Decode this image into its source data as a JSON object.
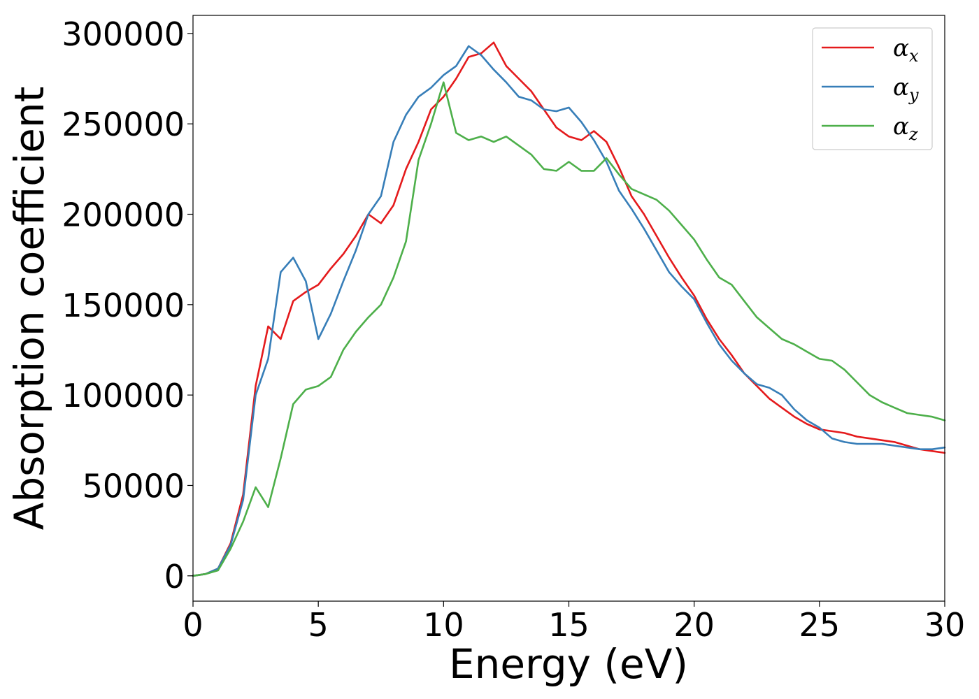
{
  "chart_data": {
    "type": "line",
    "title": "",
    "xlabel": "Energy (eV)",
    "ylabel": "Absorption coefficient",
    "xlim": [
      0,
      30
    ],
    "ylim": [
      -14000,
      310000
    ],
    "xticks": [
      0,
      5,
      10,
      15,
      20,
      25,
      30
    ],
    "xtick_labels": [
      "0",
      "5",
      "10",
      "15",
      "20",
      "25",
      "30"
    ],
    "yticks": [
      0,
      50000,
      100000,
      150000,
      200000,
      250000,
      300000
    ],
    "ytick_labels": [
      "0",
      "50000",
      "100000",
      "150000",
      "200000",
      "250000",
      "300000"
    ],
    "legend_position": "top-right",
    "grid": false,
    "x": [
      0,
      0.5,
      1,
      1.5,
      2,
      2.5,
      3,
      3.5,
      4,
      4.5,
      5,
      5.5,
      6,
      6.5,
      7,
      7.5,
      8,
      8.5,
      9,
      9.5,
      10,
      10.5,
      11,
      11.5,
      12,
      12.5,
      13,
      13.5,
      14,
      14.5,
      15,
      15.5,
      16,
      16.5,
      17,
      17.5,
      18,
      18.5,
      19,
      19.5,
      20,
      20.5,
      21,
      21.5,
      22,
      22.5,
      23,
      23.5,
      24,
      24.5,
      25,
      25.5,
      26,
      26.5,
      27,
      27.5,
      28,
      28.5,
      29,
      29.5,
      30
    ],
    "series": [
      {
        "name": "x",
        "label": "α",
        "subscript": "x",
        "color": "#e41a1c",
        "values": [
          0,
          1000,
          4000,
          18000,
          45000,
          105000,
          138000,
          131000,
          152000,
          157000,
          161000,
          170000,
          178000,
          188000,
          200000,
          195000,
          205000,
          225000,
          240000,
          258000,
          265000,
          275000,
          287000,
          289000,
          295000,
          282000,
          275000,
          268000,
          258000,
          248000,
          243000,
          241000,
          246000,
          240000,
          226000,
          210000,
          200000,
          188000,
          176000,
          165000,
          155000,
          142000,
          131000,
          122000,
          112000,
          105000,
          98000,
          93000,
          88000,
          84000,
          81000,
          80000,
          79000,
          77000,
          76000,
          75000,
          74000,
          72000,
          70000,
          69000,
          68000
        ]
      },
      {
        "name": "y",
        "label": "α",
        "subscript": "y",
        "color": "#377eb8",
        "values": [
          0,
          1000,
          4000,
          17000,
          42000,
          100000,
          120000,
          168000,
          176000,
          163000,
          131000,
          145000,
          163000,
          180000,
          200000,
          210000,
          240000,
          255000,
          265000,
          270000,
          277000,
          282000,
          293000,
          288000,
          280000,
          273000,
          265000,
          263000,
          258000,
          257000,
          259000,
          251000,
          241000,
          229000,
          213000,
          203000,
          192000,
          180000,
          168000,
          160000,
          153000,
          140000,
          128000,
          119000,
          112000,
          106000,
          104000,
          100000,
          92000,
          86000,
          82000,
          76000,
          74000,
          73000,
          73000,
          73000,
          72000,
          71000,
          70000,
          70000,
          71000
        ]
      },
      {
        "name": "z",
        "label": "α",
        "subscript": "z",
        "color": "#4daf4a",
        "values": [
          0,
          1000,
          3000,
          15000,
          30000,
          49000,
          38000,
          65000,
          95000,
          103000,
          105000,
          110000,
          125000,
          135000,
          143000,
          150000,
          165000,
          185000,
          230000,
          250000,
          273000,
          245000,
          241000,
          243000,
          240000,
          243000,
          238000,
          233000,
          225000,
          224000,
          229000,
          224000,
          224000,
          231000,
          222000,
          214000,
          211000,
          208000,
          202000,
          194000,
          186000,
          175000,
          165000,
          161000,
          152000,
          143000,
          137000,
          131000,
          128000,
          124000,
          120000,
          119000,
          114000,
          107000,
          100000,
          96000,
          93000,
          90000,
          89000,
          88000,
          86000
        ]
      }
    ]
  }
}
